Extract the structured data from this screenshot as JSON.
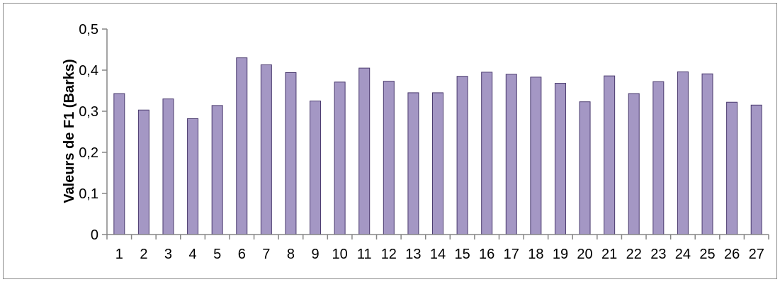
{
  "chart_data": {
    "type": "bar",
    "title": "",
    "xlabel": "",
    "ylabel": "Valeurs de F1 (Barks)",
    "ylim": [
      0,
      0.5
    ],
    "y_ticks": [
      0,
      0.1,
      0.2,
      0.3,
      0.4,
      0.5
    ],
    "y_tick_labels": [
      "0",
      "0,1",
      "0,2",
      "0,3",
      "0,4",
      "0,5"
    ],
    "categories": [
      "1",
      "2",
      "3",
      "4",
      "5",
      "6",
      "7",
      "8",
      "9",
      "10",
      "11",
      "12",
      "13",
      "14",
      "15",
      "16",
      "17",
      "18",
      "19",
      "20",
      "21",
      "22",
      "23",
      "24",
      "25",
      "26",
      "27"
    ],
    "values": [
      0.343,
      0.303,
      0.33,
      0.282,
      0.314,
      0.43,
      0.413,
      0.394,
      0.325,
      0.371,
      0.405,
      0.373,
      0.345,
      0.345,
      0.385,
      0.395,
      0.39,
      0.383,
      0.368,
      0.323,
      0.386,
      0.343,
      0.372,
      0.396,
      0.391,
      0.322,
      0.315
    ],
    "grid": false,
    "legend": "none",
    "colors": {
      "bar_fill": "#a497c4",
      "bar_stroke": "#4a3a6e",
      "axis": "#868686"
    }
  }
}
